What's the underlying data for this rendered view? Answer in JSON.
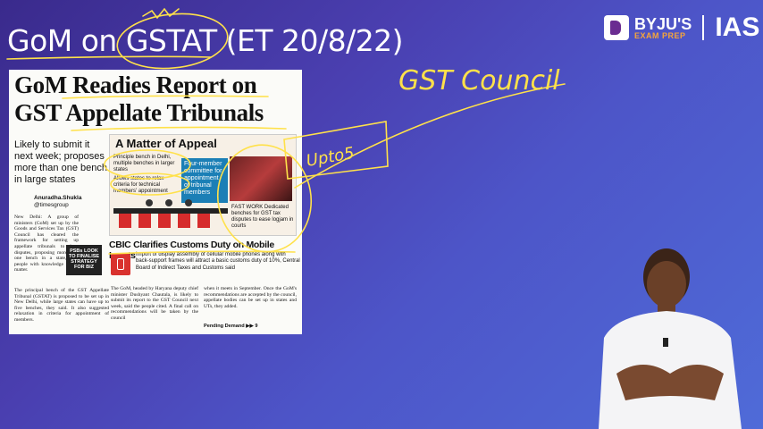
{
  "slide": {
    "title": "GoM on GSTAT (ET 20/8/22)"
  },
  "logo": {
    "brand": "BYJU'S",
    "sub": "EXAM PREP",
    "product": "IAS"
  },
  "clipping": {
    "headline_line1": "GoM Readies Report on",
    "headline_line2": "GST Appellate Tribunals",
    "deck": "Likely to submit it next week; proposes more than one bench in large states",
    "byline_name": "Anuradha.Shukla",
    "byline_handle": "@timesgroup",
    "body1": "New Delhi: A group of ministers (GoM) set up by the Goods and Services Tax (GST) Council has cleared the framework for setting up appellate tribunals to hear disputes, proposing more than one bench in a state, said people with knowledge of the matter.",
    "psu_box": "PSBs LOOK TO FINALISE STRATEGY FOR BIZ",
    "body2": "The principal bench of the GST Appellate Tribunal (GSTAT) is proposed to be set up in New Delhi, while large states can have up to five benches, they said. It also suggested relaxation in criteria for appointment of members.",
    "graphic_title": "A Matter of Appeal",
    "graphic_text1": "Principle bench in Delhi, multiple benches in larger states",
    "graphic_text2": "Allows states to relax criteria for technical members' appointment",
    "graphic_four": "Four-member committee for appointment of tribunal members",
    "graphic_fast": "FAST WORK Dedicated benches for GST tax disputes to ease logjam in courts",
    "cbic_headline": "CBIC Clarifies Customs Duty on Mobile Inputs",
    "cbic_body": "Import of display assembly of cellular mobile phones along with back-support frames will attract a basic customs duty of 10%, Central Board of Indirect Taxes and Customs said",
    "col3": "The GoM, headed by Haryana deputy chief minister Dushyant Chautala, is likely to submit its report to the GST Council next week, said the people cited. A final call on recommendations will be taken by the council",
    "col4": "when it meets in September. Once the GoM's recommendations are accepted by the council, appellate bodies can be set up in states and UTs, they added.",
    "pending": "Pending Demand ▶▶ 9"
  },
  "annotations": {
    "gst_council": "GST Council",
    "upto5": "Upto5"
  },
  "colors": {
    "annotation": "#ffe14a",
    "background_start": "#3a2a8c",
    "background_end": "#4f6bd8"
  }
}
